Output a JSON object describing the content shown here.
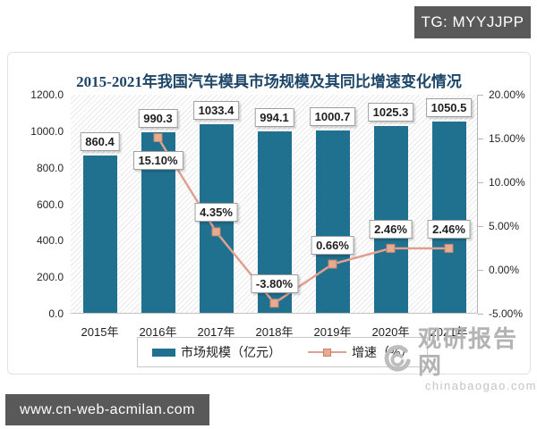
{
  "overlays": {
    "top_badge": "TG: MYYJJPP",
    "bottom_badge": "www.cn-web-acmilan.com",
    "watermark": {
      "name": "观研报告网",
      "domain": "chinabaogao.com"
    }
  },
  "chart_data": {
    "type": "bar",
    "subtype": "bar+line combo",
    "title": "2015-2021年我国汽车模具市场规模及其同比增速变化情况",
    "categories": [
      "2015年",
      "2016年",
      "2017年",
      "2018年",
      "2019年",
      "2020年",
      "2021年"
    ],
    "series": [
      {
        "name": "市场规模（亿元）",
        "type": "bar",
        "axis": "left",
        "color": "#20718f",
        "values": [
          860.4,
          990.3,
          1033.4,
          994.1,
          1000.7,
          1025.3,
          1050.5
        ],
        "data_labels": [
          "860.4",
          "990.3",
          "1033.4",
          "994.1",
          "1000.7",
          "1025.3",
          "1050.5"
        ]
      },
      {
        "name": "增速（%）",
        "type": "line",
        "axis": "right",
        "color": "#e0a091",
        "marker_fill": "#e7ab94",
        "marker_stroke": "#c98569",
        "values": [
          null,
          15.1,
          4.35,
          -3.8,
          0.66,
          2.46,
          2.46
        ],
        "data_labels": [
          null,
          "15.10%",
          "4.35%",
          "-3.80%",
          "0.66%",
          "2.46%",
          "2.46%"
        ]
      }
    ],
    "axis_left": {
      "min": 0,
      "max": 1200,
      "tick_labels": [
        "1200.0",
        "1000.0",
        "800.0",
        "600.0",
        "400.0",
        "200.0",
        "0.0"
      ]
    },
    "axis_right": {
      "min": -5,
      "max": 20,
      "tick_labels": [
        "20.00%",
        "15.00%",
        "10.00%",
        "5.00%",
        "0.00%",
        "-5.00%"
      ]
    },
    "legend_position": "bottom",
    "grid": false,
    "plot_background": "diagonal-hatch"
  }
}
